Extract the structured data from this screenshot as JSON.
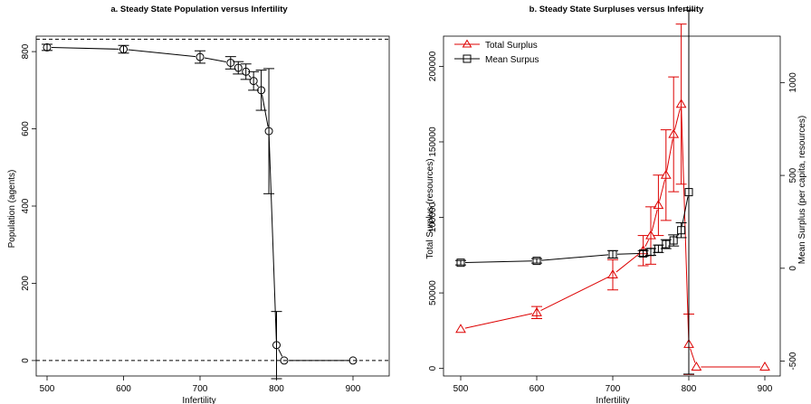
{
  "chart_data": [
    {
      "type": "line",
      "title": "a. Steady State Population versus Infertility",
      "xlabel": "Infertility",
      "ylabel": "Population (agents)",
      "xlim": [
        500,
        900
      ],
      "ylim": [
        -40,
        840
      ],
      "xticks": [
        500,
        600,
        700,
        800,
        900
      ],
      "yticks": [
        0,
        200,
        400,
        600,
        800
      ],
      "reference_lines": [
        0,
        832
      ],
      "series": [
        {
          "color": "#000000",
          "marker": "circle",
          "x": [
            500,
            600,
            700,
            740,
            750,
            760,
            770,
            780,
            790,
            800,
            810,
            900
          ],
          "y": [
            811,
            806,
            786,
            771,
            758,
            748,
            724,
            700,
            594,
            40,
            0,
            0
          ],
          "yerr": [
            8,
            10,
            16,
            16,
            16,
            20,
            24,
            52,
            162,
            87,
            0,
            0
          ]
        }
      ]
    },
    {
      "type": "line",
      "title": "b. Steady State Surpluses versus Infertility",
      "xlabel": "Infertility",
      "ylabel": "Total Surplus (resources)",
      "ylabel_right": "Mean Surplus (per capita, resources)",
      "xlim": [
        500,
        900
      ],
      "ylim": [
        -5000,
        220000
      ],
      "ylim_right": [
        -580,
        1250
      ],
      "xticks": [
        500,
        600,
        700,
        800,
        900
      ],
      "yticks": [
        0,
        50000,
        100000,
        150000,
        200000
      ],
      "yticks_right": [
        -500,
        0,
        500,
        1000
      ],
      "legend": "top-left",
      "series": [
        {
          "name": "Total Surplus",
          "color": "#dd0000",
          "marker": "triangle",
          "axis": "left",
          "x": [
            500,
            600,
            700,
            740,
            750,
            760,
            770,
            780,
            790,
            800,
            810,
            900
          ],
          "y": [
            26000,
            37000,
            62000,
            78000,
            88000,
            108000,
            128000,
            155000,
            175000,
            16000,
            1000,
            1000
          ],
          "yerr": [
            0,
            4000,
            10000,
            10000,
            19000,
            20000,
            30000,
            38000,
            53000,
            20000,
            0,
            0
          ]
        },
        {
          "name": "Mean Surpus",
          "color": "#000000",
          "marker": "square",
          "axis": "right",
          "x": [
            500,
            600,
            700,
            740,
            750,
            760,
            770,
            780,
            790,
            800
          ],
          "y": [
            30,
            40,
            75,
            80,
            88,
            105,
            130,
            150,
            205,
            410
          ],
          "yerr": [
            12,
            12,
            20,
            15,
            18,
            20,
            24,
            30,
            40,
            980
          ]
        }
      ]
    }
  ]
}
